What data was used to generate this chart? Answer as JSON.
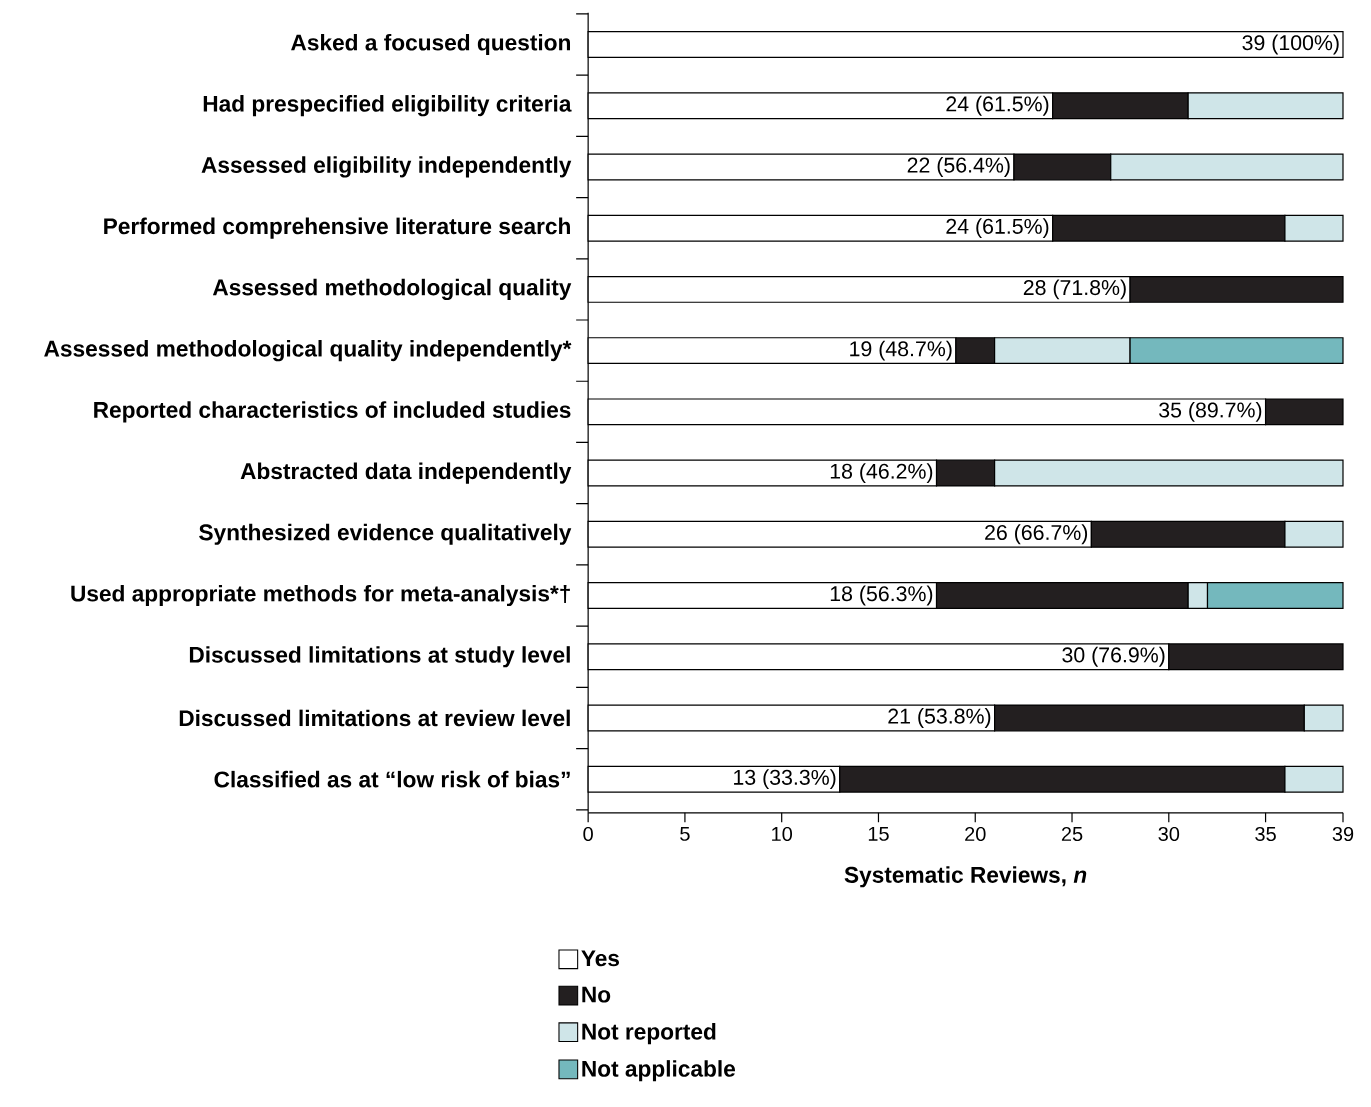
{
  "chart_data": {
    "type": "bar",
    "orientation": "horizontal",
    "stacked": true,
    "xlabel": "Systematic Reviews, *n*",
    "categories": [
      "Asked a focused question",
      "Had prespecified eligibility criteria",
      "Assessed eligibility independently",
      "Performed comprehensive literature search",
      "Assessed methodological quality",
      "Assessed methodological quality independently*",
      "Reported characteristics of included studies",
      "Abstracted data independently",
      "Synthesized evidence qualitatively",
      "Used appropriate methods for meta-analysis*†",
      "Discussed limitations at study level",
      "Discussed limitations at review level",
      "Classified as at “low risk of bias”"
    ],
    "series": [
      {
        "name": "Yes",
        "color": "#ffffff",
        "values": [
          39,
          24,
          22,
          24,
          28,
          19,
          35,
          18,
          26,
          18,
          30,
          21,
          13
        ],
        "value_labels": [
          "39 (100%)",
          "24 (61.5%)",
          "22 (56.4%)",
          "24 (61.5%)",
          "28 (71.8%)",
          "19 (48.7%)",
          "35 (89.7%)",
          "18 (46.2%)",
          "26 (66.7%)",
          "18 (56.3%)",
          "30 (76.9%)",
          "21 (53.8%)",
          "13 (33.3%)"
        ]
      },
      {
        "name": "No",
        "color": "#231f20",
        "values": [
          null,
          7,
          5,
          12,
          11,
          2,
          4,
          3,
          10,
          13,
          9,
          16,
          23
        ]
      },
      {
        "name": "Not reported",
        "color": "#cfe5e8",
        "values": [
          null,
          8,
          12,
          3,
          null,
          7,
          null,
          18,
          3,
          1,
          null,
          2,
          3
        ]
      },
      {
        "name": "Not applicable",
        "color": "#74b8bd",
        "values": [
          null,
          null,
          null,
          null,
          null,
          11,
          null,
          null,
          null,
          7,
          null,
          null,
          null
        ]
      }
    ],
    "xlim": [
      0,
      39
    ],
    "xticks": [
      0,
      5,
      10,
      15,
      20,
      25,
      30,
      35,
      39
    ],
    "legend": "bottom"
  }
}
